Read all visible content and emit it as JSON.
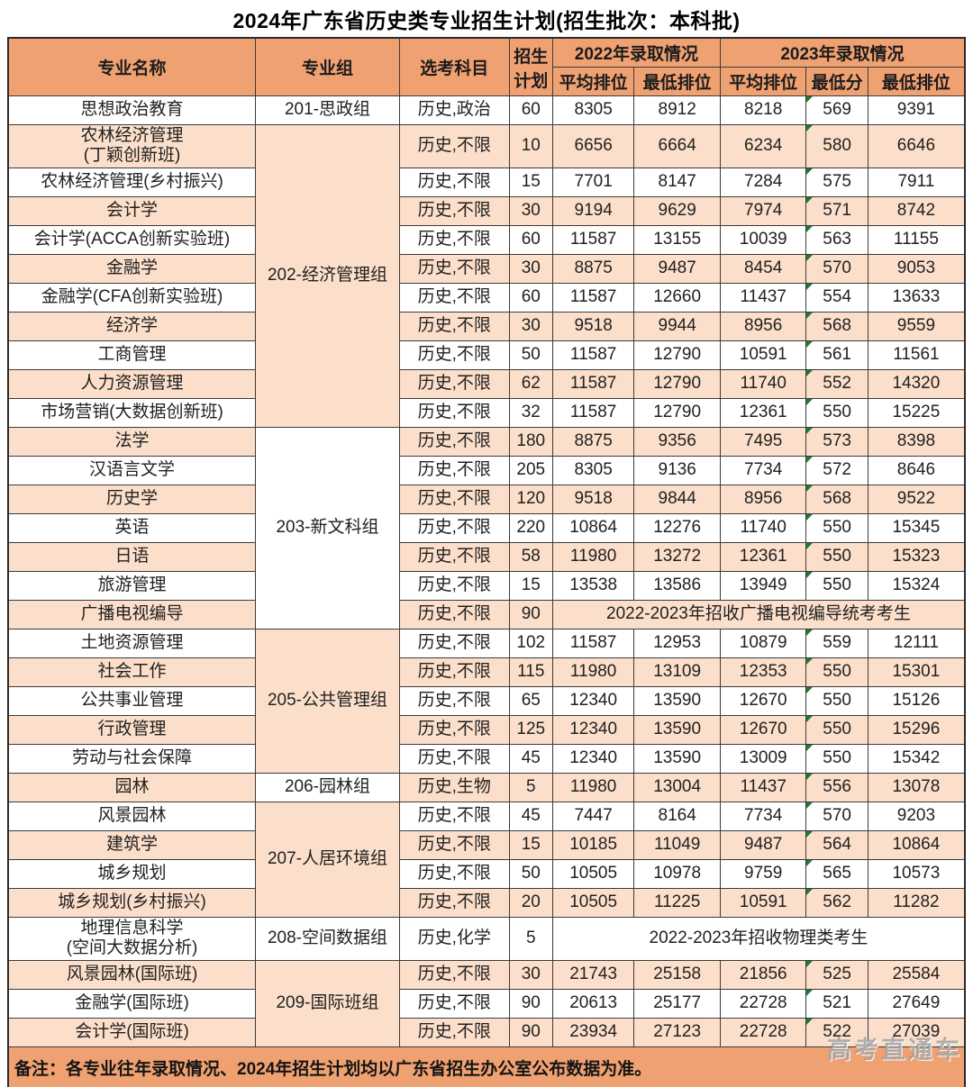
{
  "title": "2024年广东省历史类专业招生计划(招生批次：本科批)",
  "table": {
    "headers": {
      "major": "专业名称",
      "group": "专业组",
      "subjects": "选考科目",
      "plan": "招生计划",
      "y2022": "2022年录取情况",
      "y2023": "2023年录取情况",
      "avg_rank_2022": "平均排位",
      "min_rank_2022": "最低排位",
      "avg_rank_2023": "平均排位",
      "min_score_2023": "最低分",
      "min_rank_2023": "最低排位"
    },
    "groups": [
      {
        "group": "201-思政组",
        "rows": [
          {
            "major": "思想政治教育",
            "subjects": "历史,政治",
            "plan": "60",
            "cells": [
              "8305",
              "8912",
              "8218",
              "569",
              "9391"
            ]
          }
        ]
      },
      {
        "group": "202-经济管理组",
        "rows": [
          {
            "major": "农林经济管理\n(丁颖创新班)",
            "subjects": "历史,不限",
            "plan": "10",
            "cells": [
              "6656",
              "6664",
              "6234",
              "580",
              "6646"
            ]
          },
          {
            "major": "农林经济管理(乡村振兴)",
            "subjects": "历史,不限",
            "plan": "15",
            "cells": [
              "7701",
              "8147",
              "7284",
              "575",
              "7911"
            ]
          },
          {
            "major": "会计学",
            "subjects": "历史,不限",
            "plan": "30",
            "cells": [
              "9194",
              "9629",
              "7974",
              "571",
              "8742"
            ]
          },
          {
            "major": "会计学(ACCA创新实验班)",
            "subjects": "历史,不限",
            "plan": "60",
            "cells": [
              "11587",
              "13155",
              "10039",
              "563",
              "11155"
            ]
          },
          {
            "major": "金融学",
            "subjects": "历史,不限",
            "plan": "30",
            "cells": [
              "8875",
              "9487",
              "8454",
              "570",
              "9053"
            ]
          },
          {
            "major": "金融学(CFA创新实验班)",
            "subjects": "历史,不限",
            "plan": "60",
            "cells": [
              "11587",
              "12660",
              "11437",
              "554",
              "13633"
            ]
          },
          {
            "major": "经济学",
            "subjects": "历史,不限",
            "plan": "30",
            "cells": [
              "9518",
              "9944",
              "8956",
              "568",
              "9559"
            ]
          },
          {
            "major": "工商管理",
            "subjects": "历史,不限",
            "plan": "50",
            "cells": [
              "11587",
              "12790",
              "10591",
              "561",
              "11561"
            ]
          },
          {
            "major": "人力资源管理",
            "subjects": "历史,不限",
            "plan": "62",
            "cells": [
              "11587",
              "12790",
              "11740",
              "552",
              "14320"
            ]
          },
          {
            "major": "市场营销(大数据创新班)",
            "subjects": "历史,不限",
            "plan": "32",
            "cells": [
              "11587",
              "12790",
              "12361",
              "550",
              "15225"
            ]
          }
        ]
      },
      {
        "group": "203-新文科组",
        "rows": [
          {
            "major": "法学",
            "subjects": "历史,不限",
            "plan": "180",
            "cells": [
              "8875",
              "9356",
              "7495",
              "573",
              "8398"
            ]
          },
          {
            "major": "汉语言文学",
            "subjects": "历史,不限",
            "plan": "205",
            "cells": [
              "8305",
              "9136",
              "7734",
              "572",
              "8646"
            ]
          },
          {
            "major": "历史学",
            "subjects": "历史,不限",
            "plan": "120",
            "cells": [
              "9518",
              "9844",
              "8956",
              "568",
              "9522"
            ]
          },
          {
            "major": "英语",
            "subjects": "历史,不限",
            "plan": "220",
            "cells": [
              "10864",
              "12276",
              "11740",
              "550",
              "15345"
            ]
          },
          {
            "major": "日语",
            "subjects": "历史,不限",
            "plan": "58",
            "cells": [
              "11980",
              "13272",
              "12361",
              "550",
              "15323"
            ]
          },
          {
            "major": "旅游管理",
            "subjects": "历史,不限",
            "plan": "15",
            "cells": [
              "13538",
              "13586",
              "13949",
              "550",
              "15324"
            ]
          },
          {
            "major": "广播电视编导",
            "subjects": "历史,不限",
            "plan": "90",
            "note": "2022-2023年招收广播电视编导统考考生"
          }
        ]
      },
      {
        "group": "205-公共管理组",
        "rows": [
          {
            "major": "土地资源管理",
            "subjects": "历史,不限",
            "plan": "102",
            "cells": [
              "11587",
              "12953",
              "10879",
              "559",
              "12111"
            ]
          },
          {
            "major": "社会工作",
            "subjects": "历史,不限",
            "plan": "115",
            "cells": [
              "11980",
              "13109",
              "12353",
              "550",
              "15301"
            ]
          },
          {
            "major": "公共事业管理",
            "subjects": "历史,不限",
            "plan": "65",
            "cells": [
              "12340",
              "13590",
              "12670",
              "550",
              "15126"
            ]
          },
          {
            "major": "行政管理",
            "subjects": "历史,不限",
            "plan": "125",
            "cells": [
              "12340",
              "13590",
              "12670",
              "550",
              "15296"
            ]
          },
          {
            "major": "劳动与社会保障",
            "subjects": "历史,不限",
            "plan": "45",
            "cells": [
              "12340",
              "13590",
              "13009",
              "550",
              "15342"
            ]
          }
        ]
      },
      {
        "group": "206-园林组",
        "rows": [
          {
            "major": "园林",
            "subjects": "历史,生物",
            "plan": "5",
            "cells": [
              "11980",
              "13004",
              "11437",
              "556",
              "13078"
            ]
          }
        ]
      },
      {
        "group": "207-人居环境组",
        "rows": [
          {
            "major": "风景园林",
            "subjects": "历史,不限",
            "plan": "45",
            "cells": [
              "7447",
              "8164",
              "7734",
              "570",
              "9203"
            ]
          },
          {
            "major": "建筑学",
            "subjects": "历史,不限",
            "plan": "15",
            "cells": [
              "10185",
              "11049",
              "9487",
              "564",
              "10864"
            ]
          },
          {
            "major": "城乡规划",
            "subjects": "历史,不限",
            "plan": "50",
            "cells": [
              "10505",
              "10978",
              "9759",
              "565",
              "10573"
            ]
          },
          {
            "major": "城乡规划(乡村振兴)",
            "subjects": "历史,不限",
            "plan": "20",
            "cells": [
              "10505",
              "11225",
              "10591",
              "562",
              "11282"
            ]
          }
        ]
      },
      {
        "group": "208-空间数据组",
        "rows": [
          {
            "major": "地理信息科学\n(空间大数据分析)",
            "subjects": "历史,化学",
            "plan": "5",
            "note": "2022-2023年招收物理类考生"
          }
        ]
      },
      {
        "group": "209-国际班组",
        "rows": [
          {
            "major": "风景园林(国际班)",
            "subjects": "历史,不限",
            "plan": "30",
            "cells": [
              "21743",
              "25158",
              "21856",
              "525",
              "25584"
            ]
          },
          {
            "major": "金融学(国际班)",
            "subjects": "历史,不限",
            "plan": "90",
            "cells": [
              "20613",
              "25177",
              "22728",
              "521",
              "27649"
            ]
          },
          {
            "major": "会计学(国际班)",
            "subjects": "历史,不限",
            "plan": "90",
            "cells": [
              "23934",
              "27123",
              "22728",
              "522",
              "27039"
            ]
          }
        ]
      }
    ]
  },
  "footer_note": "备注：各专业往年录取情况、2024年招生计划均以广东省招生办公室公布数据为准。",
  "watermark": "高考直通车",
  "colors": {
    "header_bg": "#f0a172",
    "stripe_bg": "#fcdfca",
    "border": "#3b3b3b",
    "triangle_green": "#1e7a34",
    "watermark_gray": "#969696"
  }
}
